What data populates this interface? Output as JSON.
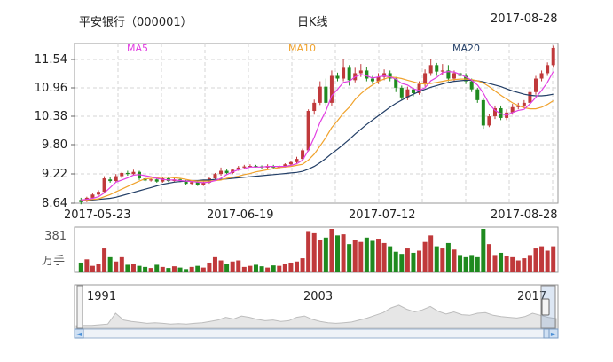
{
  "header": {
    "stock": "平安银行（000001）",
    "chart_kind": "日K线",
    "date": "2017-08-28"
  },
  "colors": {
    "up": "#c0393b",
    "down": "#1f8a1f",
    "ma5": "#e23ee2",
    "ma10": "#f0a22c",
    "ma20": "#223e66",
    "grid": "#d6d6d6",
    "frame": "#9a9a9a",
    "navigator_fill": "#e6e6e6",
    "scroll_arrow": "#4a8fd6"
  },
  "chart_data": [
    {
      "type": "candlestick",
      "legend": [
        "MA5",
        "MA10",
        "MA20"
      ],
      "y_ticks": [
        "11.54",
        "10.96",
        "10.38",
        "9.80",
        "9.22",
        "8.64"
      ],
      "x_ticks": [
        "2017-05-23",
        "2017-06-19",
        "2017-07-12",
        "2017-08-28"
      ],
      "ylim": [
        8.64,
        11.6
      ],
      "grid": true,
      "candles": [
        [
          8.7,
          8.66,
          8.62,
          8.74
        ],
        [
          8.68,
          8.74,
          8.66,
          8.76
        ],
        [
          8.74,
          8.8,
          8.72,
          8.82
        ],
        [
          8.8,
          8.85,
          8.78,
          8.88
        ],
        [
          8.85,
          9.1,
          8.84,
          9.14
        ],
        [
          9.08,
          9.05,
          9.02,
          9.12
        ],
        [
          9.05,
          9.14,
          9.03,
          9.18
        ],
        [
          9.14,
          9.2,
          9.1,
          9.22
        ],
        [
          9.2,
          9.18,
          9.15,
          9.24
        ],
        [
          9.18,
          9.22,
          9.16,
          9.26
        ],
        [
          9.22,
          9.1,
          9.07,
          9.24
        ],
        [
          9.1,
          9.06,
          9.04,
          9.12
        ],
        [
          9.06,
          9.08,
          9.04,
          9.1
        ],
        [
          9.08,
          9.04,
          9.02,
          9.1
        ],
        [
          9.04,
          9.1,
          9.02,
          9.12
        ],
        [
          9.1,
          9.05,
          9.03,
          9.12
        ],
        [
          9.05,
          9.08,
          9.04,
          9.1
        ],
        [
          9.08,
          9.05,
          9.03,
          9.1
        ],
        [
          9.05,
          9.0,
          8.98,
          9.07
        ],
        [
          9.0,
          9.03,
          8.98,
          9.05
        ],
        [
          9.03,
          8.98,
          8.96,
          9.05
        ],
        [
          8.98,
          9.02,
          8.96,
          9.04
        ],
        [
          9.02,
          9.1,
          9.0,
          9.12
        ],
        [
          9.1,
          9.18,
          9.08,
          9.2
        ],
        [
          9.18,
          9.24,
          9.15,
          9.3
        ],
        [
          9.24,
          9.2,
          9.18,
          9.27
        ],
        [
          9.2,
          9.26,
          9.18,
          9.28
        ],
        [
          9.26,
          9.3,
          9.24,
          9.33
        ],
        [
          9.3,
          9.32,
          9.27,
          9.35
        ],
        [
          9.32,
          9.33,
          9.3,
          9.36
        ],
        [
          9.33,
          9.32,
          9.3,
          9.35
        ],
        [
          9.32,
          9.3,
          9.28,
          9.34
        ],
        [
          9.3,
          9.33,
          9.28,
          9.36
        ],
        [
          9.33,
          9.3,
          9.28,
          9.35
        ],
        [
          9.3,
          9.32,
          9.28,
          9.34
        ],
        [
          9.32,
          9.36,
          9.3,
          9.38
        ],
        [
          9.36,
          9.4,
          9.34,
          9.42
        ],
        [
          9.4,
          9.46,
          9.38,
          9.5
        ],
        [
          9.46,
          9.62,
          9.44,
          9.65
        ],
        [
          9.62,
          10.35,
          9.6,
          10.38
        ],
        [
          10.35,
          10.5,
          10.28,
          10.56
        ],
        [
          10.5,
          10.8,
          10.46,
          10.9
        ],
        [
          10.8,
          10.5,
          10.45,
          10.95
        ],
        [
          10.5,
          11.0,
          10.45,
          11.1
        ],
        [
          11.0,
          10.95,
          10.9,
          11.06
        ],
        [
          10.95,
          11.15,
          10.9,
          11.32
        ],
        [
          11.15,
          10.92,
          10.82,
          11.2
        ],
        [
          10.92,
          11.05,
          10.88,
          11.15
        ],
        [
          11.05,
          11.1,
          10.98,
          11.22
        ],
        [
          11.1,
          10.95,
          10.9,
          11.16
        ],
        [
          10.95,
          10.9,
          10.85,
          11.0
        ],
        [
          10.9,
          10.98,
          10.85,
          11.05
        ],
        [
          10.98,
          11.05,
          10.92,
          11.12
        ],
        [
          11.05,
          10.95,
          10.9,
          11.1
        ],
        [
          10.95,
          10.78,
          10.7,
          10.98
        ],
        [
          10.78,
          10.6,
          10.55,
          10.82
        ],
        [
          10.6,
          10.75,
          10.55,
          10.8
        ],
        [
          10.75,
          10.68,
          10.62,
          10.78
        ],
        [
          10.68,
          10.85,
          10.65,
          10.9
        ],
        [
          10.85,
          11.05,
          10.8,
          11.12
        ],
        [
          11.05,
          11.2,
          11.0,
          11.32
        ],
        [
          11.2,
          11.08,
          11.0,
          11.24
        ],
        [
          11.08,
          11.1,
          11.02,
          11.22
        ],
        [
          11.1,
          10.95,
          10.9,
          11.2
        ],
        [
          10.95,
          11.05,
          10.9,
          11.1
        ],
        [
          11.05,
          11.0,
          10.95,
          11.08
        ],
        [
          11.0,
          10.9,
          10.85,
          11.05
        ],
        [
          10.9,
          10.75,
          10.7,
          10.95
        ],
        [
          10.75,
          10.55,
          10.5,
          10.78
        ],
        [
          10.55,
          10.08,
          10.02,
          10.58
        ],
        [
          10.08,
          10.25,
          10.05,
          10.3
        ],
        [
          10.25,
          10.4,
          10.2,
          10.45
        ],
        [
          10.4,
          10.22,
          10.18,
          10.45
        ],
        [
          10.22,
          10.32,
          10.18,
          10.38
        ],
        [
          10.32,
          10.42,
          10.28,
          10.48
        ],
        [
          10.42,
          10.45,
          10.38,
          10.5
        ],
        [
          10.45,
          10.5,
          10.4,
          10.55
        ],
        [
          10.5,
          10.7,
          10.48,
          10.75
        ],
        [
          10.7,
          10.95,
          10.65,
          11.0
        ],
        [
          10.95,
          11.05,
          10.9,
          11.1
        ],
        [
          11.05,
          11.2,
          11.0,
          11.25
        ],
        [
          11.2,
          11.52,
          11.15,
          11.56
        ]
      ],
      "ma5": [
        8.7,
        8.71,
        8.73,
        8.76,
        8.83,
        8.93,
        9.03,
        9.07,
        9.11,
        9.16,
        9.17,
        9.15,
        9.13,
        9.1,
        9.08,
        9.07,
        9.07,
        9.06,
        9.05,
        9.04,
        9.03,
        9.02,
        9.03,
        9.06,
        9.1,
        9.17,
        9.22,
        9.26,
        9.28,
        9.31,
        9.31,
        9.31,
        9.32,
        9.32,
        9.32,
        9.32,
        9.34,
        9.37,
        9.44,
        9.62,
        9.86,
        10.14,
        10.35,
        10.63,
        10.75,
        10.88,
        10.9,
        10.98,
        11.03,
        11.0,
        10.96,
        10.98,
        11.0,
        10.98,
        10.94,
        10.86,
        10.83,
        10.76,
        10.73,
        10.78,
        10.91,
        10.97,
        11.06,
        11.08,
        11.07,
        11.03,
        10.98,
        10.92,
        10.83,
        10.68,
        10.48,
        10.36,
        10.3,
        10.27,
        10.32,
        10.36,
        10.38,
        10.48,
        10.6,
        10.73,
        10.88,
        11.08
      ],
      "ma10": [
        8.7,
        8.7,
        8.71,
        8.72,
        8.76,
        8.8,
        8.85,
        8.9,
        8.95,
        9.0,
        9.05,
        9.09,
        9.1,
        9.11,
        9.12,
        9.12,
        9.11,
        9.1,
        9.08,
        9.06,
        9.05,
        9.05,
        9.05,
        9.06,
        9.07,
        9.1,
        9.12,
        9.14,
        9.17,
        9.19,
        9.22,
        9.24,
        9.26,
        9.28,
        9.3,
        9.31,
        9.32,
        9.34,
        9.36,
        9.44,
        9.55,
        9.7,
        9.86,
        10.04,
        10.17,
        10.31,
        10.42,
        10.56,
        10.67,
        10.76,
        10.83,
        10.9,
        10.94,
        10.98,
        10.97,
        10.95,
        10.92,
        10.89,
        10.86,
        10.85,
        10.86,
        10.88,
        10.9,
        10.92,
        10.93,
        10.94,
        10.94,
        10.93,
        10.91,
        10.87,
        10.8,
        10.72,
        10.64,
        10.57,
        10.5,
        10.45,
        10.41,
        10.39,
        10.39,
        10.42,
        10.47,
        10.54
      ],
      "ma20": [
        8.7,
        8.7,
        8.7,
        8.71,
        8.72,
        8.73,
        8.75,
        8.78,
        8.81,
        8.84,
        8.87,
        8.9,
        8.93,
        8.96,
        8.99,
        9.01,
        9.03,
        9.04,
        9.05,
        9.06,
        9.06,
        9.07,
        9.07,
        9.08,
        9.08,
        9.09,
        9.1,
        9.11,
        9.12,
        9.13,
        9.14,
        9.15,
        9.16,
        9.17,
        9.18,
        9.19,
        9.2,
        9.21,
        9.23,
        9.27,
        9.32,
        9.39,
        9.47,
        9.56,
        9.64,
        9.73,
        9.82,
        9.92,
        10.01,
        10.1,
        10.18,
        10.26,
        10.34,
        10.42,
        10.49,
        10.55,
        10.61,
        10.66,
        10.71,
        10.75,
        10.79,
        10.82,
        10.85,
        10.88,
        10.9,
        10.91,
        10.92,
        10.92,
        10.91,
        10.89,
        10.86,
        10.83,
        10.8,
        10.76,
        10.72,
        10.69,
        10.66,
        10.64,
        10.63,
        10.63,
        10.64,
        10.66
      ]
    },
    {
      "type": "bar",
      "y_max_label": "381",
      "unit_label": "万手",
      "values": [
        45,
        60,
        30,
        38,
        110,
        70,
        50,
        70,
        35,
        40,
        30,
        25,
        20,
        35,
        25,
        20,
        28,
        22,
        15,
        25,
        30,
        22,
        45,
        70,
        55,
        40,
        50,
        55,
        25,
        30,
        35,
        28,
        22,
        32,
        30,
        40,
        45,
        50,
        65,
        190,
        180,
        150,
        160,
        200,
        170,
        175,
        130,
        150,
        140,
        160,
        145,
        155,
        135,
        120,
        95,
        85,
        110,
        90,
        100,
        140,
        170,
        120,
        110,
        135,
        105,
        80,
        70,
        80,
        70,
        200,
        130,
        80,
        90,
        75,
        70,
        55,
        65,
        80,
        110,
        120,
        100,
        120
      ],
      "up": [
        false,
        true,
        true,
        true,
        true,
        false,
        true,
        true,
        false,
        true,
        false,
        false,
        true,
        false,
        true,
        false,
        true,
        false,
        false,
        true,
        false,
        true,
        true,
        true,
        true,
        false,
        true,
        true,
        true,
        true,
        false,
        false,
        true,
        false,
        true,
        true,
        true,
        true,
        true,
        true,
        true,
        true,
        false,
        true,
        false,
        true,
        false,
        true,
        true,
        false,
        false,
        true,
        true,
        false,
        false,
        false,
        true,
        false,
        true,
        true,
        true,
        false,
        true,
        false,
        true,
        false,
        false,
        false,
        false,
        false,
        true,
        true,
        false,
        true,
        true,
        true,
        true,
        true,
        true,
        true,
        true,
        true
      ]
    },
    {
      "type": "area",
      "x_labels": [
        "1991",
        "2003",
        "2017"
      ],
      "values": [
        0.05,
        0.06,
        0.06,
        0.08,
        0.1,
        0.42,
        0.22,
        0.18,
        0.15,
        0.12,
        0.14,
        0.12,
        0.1,
        0.11,
        0.1,
        0.12,
        0.14,
        0.18,
        0.22,
        0.3,
        0.25,
        0.34,
        0.3,
        0.24,
        0.2,
        0.22,
        0.18,
        0.2,
        0.3,
        0.34,
        0.24,
        0.18,
        0.14,
        0.12,
        0.14,
        0.16,
        0.22,
        0.28,
        0.36,
        0.44,
        0.58,
        0.66,
        0.54,
        0.46,
        0.52,
        0.62,
        0.48,
        0.4,
        0.46,
        0.38,
        0.36,
        0.42,
        0.44,
        0.36,
        0.32,
        0.3,
        0.28,
        0.32,
        0.42,
        0.36,
        0.3,
        0.26
      ]
    }
  ],
  "navigator": {
    "left_arrow": "◄",
    "right_arrow": "►",
    "handle_grip": "|||"
  }
}
